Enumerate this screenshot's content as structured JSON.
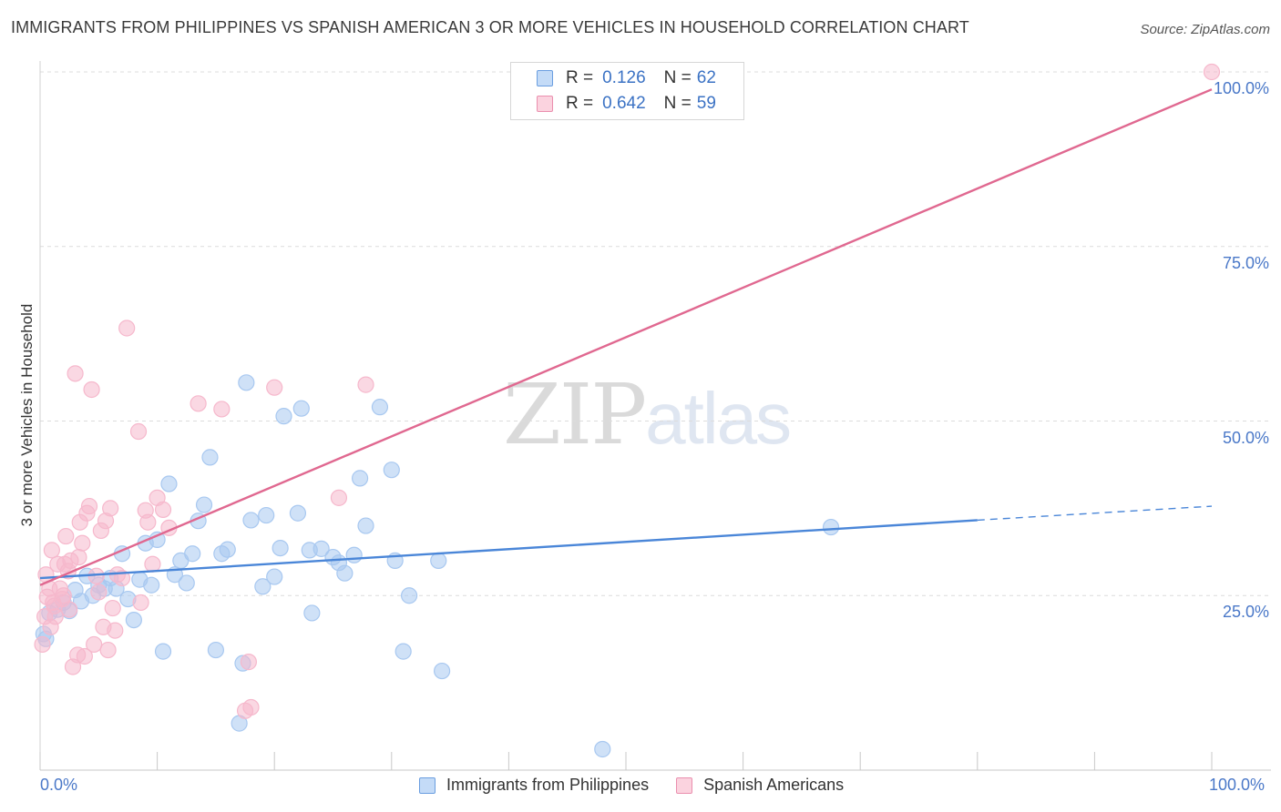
{
  "title": "IMMIGRANTS FROM PHILIPPINES VS SPANISH AMERICAN 3 OR MORE VEHICLES IN HOUSEHOLD CORRELATION CHART",
  "source": "Source: ZipAtlas.com",
  "watermark": {
    "part1": "ZIP",
    "part2": "atlas"
  },
  "legend": {
    "rows": [
      {
        "r_label": "R =",
        "r_value": "0.126",
        "n_label": "N =",
        "n_value": "62",
        "color": "#a8c8f0"
      },
      {
        "r_label": "R =",
        "r_value": "0.642",
        "n_label": "N =",
        "n_value": "59",
        "color": "#f6b8cc"
      }
    ]
  },
  "bottom_legend": [
    {
      "label": "Immigrants from Philippines",
      "color": "#a8c8f0"
    },
    {
      "label": "Spanish Americans",
      "color": "#f6b8cc"
    }
  ],
  "chart_data": {
    "type": "scatter",
    "title": "IMMIGRANTS FROM PHILIPPINES VS SPANISH AMERICAN 3 OR MORE VEHICLES IN HOUSEHOLD CORRELATION CHART",
    "xlabel": "",
    "ylabel": "3 or more Vehicles in Household",
    "xlim": [
      0,
      100
    ],
    "ylim": [
      0,
      100
    ],
    "x_tick_labels": [
      "0.0%",
      "100.0%"
    ],
    "y_tick_labels": [
      "25.0%",
      "50.0%",
      "75.0%",
      "100.0%"
    ],
    "y_ticks": [
      25,
      50,
      75,
      100
    ],
    "grid": true,
    "series": [
      {
        "name": "Immigrants from Philippines",
        "color": "#4a86d8",
        "fill": "#a8c8f0",
        "trend": {
          "x0": 0,
          "y0": 27.5,
          "x1": 80,
          "y1": 35.8,
          "dashed_to_x": 100,
          "dashed_to_y": 37.8
        },
        "points": [
          [
            0.3,
            19.5
          ],
          [
            0.5,
            18.8
          ],
          [
            0.8,
            22.5
          ],
          [
            1.5,
            23.0
          ],
          [
            2.0,
            24.0
          ],
          [
            2.5,
            22.8
          ],
          [
            3.0,
            25.8
          ],
          [
            3.5,
            24.2
          ],
          [
            4.0,
            27.8
          ],
          [
            4.5,
            25.0
          ],
          [
            5.0,
            26.5
          ],
          [
            5.5,
            26.0
          ],
          [
            6.0,
            27.5
          ],
          [
            6.5,
            26.0
          ],
          [
            7.0,
            31.0
          ],
          [
            7.5,
            24.5
          ],
          [
            8.0,
            21.5
          ],
          [
            8.5,
            27.3
          ],
          [
            9.0,
            32.5
          ],
          [
            9.5,
            26.5
          ],
          [
            10.0,
            33.0
          ],
          [
            10.5,
            17.0
          ],
          [
            11.0,
            41.0
          ],
          [
            11.5,
            28.0
          ],
          [
            12.0,
            30.0
          ],
          [
            12.5,
            26.8
          ],
          [
            13.0,
            31.0
          ],
          [
            13.5,
            35.7
          ],
          [
            14.0,
            38.0
          ],
          [
            14.5,
            44.8
          ],
          [
            15.0,
            17.2
          ],
          [
            15.5,
            31.0
          ],
          [
            16.0,
            31.6
          ],
          [
            17.0,
            6.7
          ],
          [
            17.3,
            15.3
          ],
          [
            17.6,
            55.5
          ],
          [
            18.0,
            35.8
          ],
          [
            19.0,
            26.3
          ],
          [
            19.3,
            36.5
          ],
          [
            20.0,
            27.7
          ],
          [
            20.5,
            31.8
          ],
          [
            20.8,
            50.7
          ],
          [
            22.0,
            36.8
          ],
          [
            22.3,
            51.8
          ],
          [
            23.0,
            31.5
          ],
          [
            23.2,
            22.5
          ],
          [
            24.0,
            31.7
          ],
          [
            25.0,
            30.5
          ],
          [
            25.5,
            29.7
          ],
          [
            26.0,
            28.2
          ],
          [
            26.8,
            30.8
          ],
          [
            27.3,
            41.8
          ],
          [
            27.8,
            35.0
          ],
          [
            29.0,
            52.0
          ],
          [
            30.0,
            43.0
          ],
          [
            30.3,
            30.0
          ],
          [
            31.0,
            17.0
          ],
          [
            31.5,
            25.0
          ],
          [
            34.0,
            30.0
          ],
          [
            34.3,
            14.2
          ],
          [
            48.0,
            3.0
          ],
          [
            67.5,
            34.8
          ]
        ]
      },
      {
        "name": "Spanish Americans",
        "color": "#e06890",
        "fill": "#f6b8cc",
        "trend": {
          "x0": 0,
          "y0": 26.5,
          "x1": 100,
          "y1": 97.5
        },
        "points": [
          [
            0.2,
            18.0
          ],
          [
            0.4,
            22.0
          ],
          [
            0.6,
            24.8
          ],
          [
            0.8,
            26.0
          ],
          [
            1.0,
            31.5
          ],
          [
            1.2,
            23.5
          ],
          [
            1.5,
            29.5
          ],
          [
            1.7,
            26.0
          ],
          [
            2.0,
            25.0
          ],
          [
            2.2,
            33.5
          ],
          [
            2.4,
            28.5
          ],
          [
            2.6,
            30.0
          ],
          [
            2.8,
            14.8
          ],
          [
            3.0,
            56.8
          ],
          [
            3.2,
            16.5
          ],
          [
            3.4,
            35.5
          ],
          [
            3.6,
            32.5
          ],
          [
            3.8,
            16.3
          ],
          [
            4.0,
            36.8
          ],
          [
            4.2,
            37.8
          ],
          [
            4.4,
            54.5
          ],
          [
            4.6,
            18.0
          ],
          [
            4.8,
            27.8
          ],
          [
            5.0,
            25.5
          ],
          [
            5.2,
            34.3
          ],
          [
            5.4,
            20.5
          ],
          [
            5.6,
            35.7
          ],
          [
            5.8,
            17.2
          ],
          [
            6.0,
            37.5
          ],
          [
            6.2,
            23.2
          ],
          [
            6.4,
            20.0
          ],
          [
            6.6,
            28.0
          ],
          [
            7.0,
            27.5
          ],
          [
            7.4,
            63.3
          ],
          [
            8.4,
            48.5
          ],
          [
            8.6,
            24.0
          ],
          [
            9.0,
            37.2
          ],
          [
            9.2,
            35.5
          ],
          [
            9.6,
            29.5
          ],
          [
            10.0,
            39.0
          ],
          [
            10.5,
            37.3
          ],
          [
            11.0,
            34.7
          ],
          [
            13.5,
            52.5
          ],
          [
            15.5,
            51.7
          ],
          [
            17.5,
            8.5
          ],
          [
            17.8,
            15.5
          ],
          [
            18.0,
            9.0
          ],
          [
            20.0,
            54.8
          ],
          [
            25.5,
            39.0
          ],
          [
            27.8,
            55.2
          ],
          [
            100.0,
            100.0
          ],
          [
            0.9,
            20.5
          ],
          [
            1.3,
            22.0
          ],
          [
            1.9,
            24.5
          ],
          [
            2.5,
            23.0
          ],
          [
            0.5,
            28.0
          ],
          [
            1.1,
            24.0
          ],
          [
            2.1,
            29.5
          ],
          [
            3.3,
            30.5
          ]
        ]
      }
    ]
  }
}
